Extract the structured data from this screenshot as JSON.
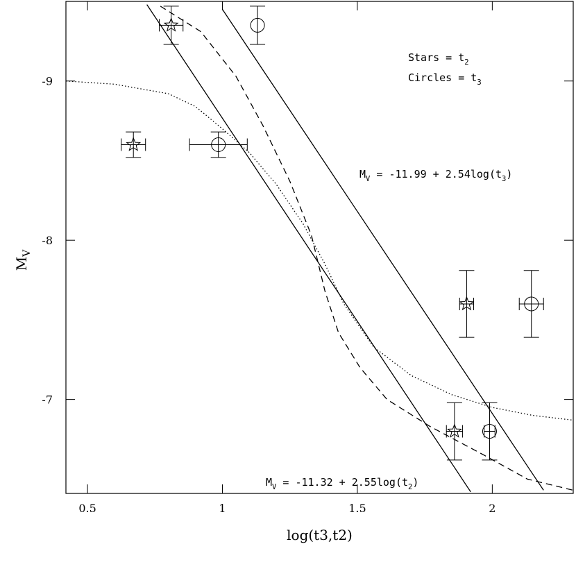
{
  "chart_data": {
    "type": "errorbar",
    "xlabel": "log(t3,t2)",
    "ylabel": [
      {
        "t": "M"
      },
      {
        "sub": "V"
      }
    ],
    "xlim": [
      0.42,
      2.3
    ],
    "ylim": [
      -9.5,
      -6.41
    ],
    "y_inverted": true,
    "xticks": [
      0.5,
      1,
      1.5,
      2
    ],
    "yticks": [
      -9,
      -8,
      -7
    ],
    "points": [
      {
        "marker": "star",
        "x": [
          0.81,
          0.67,
          1.905,
          1.86
        ],
        "y": [
          -9.35,
          -8.6,
          -7.6,
          -6.8
        ],
        "xerr": [
          0.044,
          0.045,
          0.026,
          0.03
        ],
        "yerr": [
          0.12,
          0.08,
          0.21,
          0.18
        ]
      },
      {
        "marker": "circle",
        "x": [
          1.13,
          0.985,
          2.145,
          1.99
        ],
        "y": [
          -9.35,
          -8.6,
          -7.6,
          -6.8
        ],
        "xerr": [
          null,
          0.107,
          0.045,
          0.02
        ],
        "yerr": [
          0.12,
          0.08,
          0.21,
          0.18
        ]
      }
    ],
    "curves": [
      {
        "style": "solid",
        "x": [
          1.0,
          2.19
        ],
        "y": [
          -9.45,
          -6.43
        ]
      },
      {
        "style": "solid",
        "x": [
          0.72,
          1.92
        ],
        "y": [
          -9.48,
          -6.42
        ]
      },
      {
        "style": "dotted",
        "x": [
          0.42,
          0.6,
          0.8,
          0.9,
          1.0,
          1.1,
          1.2,
          1.3,
          1.38,
          1.45,
          1.56,
          1.7,
          1.85,
          2.0,
          2.15,
          2.3
        ],
        "y": [
          -9.0,
          -8.98,
          -8.92,
          -8.84,
          -8.7,
          -8.55,
          -8.35,
          -8.1,
          -7.85,
          -7.6,
          -7.33,
          -7.15,
          -7.03,
          -6.95,
          -6.9,
          -6.87
        ]
      },
      {
        "style": "dashed",
        "x": [
          0.77,
          0.92,
          1.05,
          1.15,
          1.25,
          1.33,
          1.38,
          1.43,
          1.51,
          1.61,
          1.77,
          1.97,
          2.13,
          2.3
        ],
        "y": [
          -9.47,
          -9.31,
          -9.03,
          -8.72,
          -8.37,
          -8.03,
          -7.68,
          -7.42,
          -7.2,
          -7.0,
          -6.83,
          -6.65,
          -6.5,
          -6.43
        ]
      }
    ],
    "annotations": [
      {
        "parts": [
          {
            "t": "Stars  = t"
          },
          {
            "sub": "2"
          }
        ]
      },
      {
        "parts": [
          {
            "t": "Circles = t"
          },
          {
            "sub": "3"
          }
        ]
      },
      {
        "parts": [
          {
            "t": "M"
          },
          {
            "sub": "V"
          },
          {
            "t": " = -11.99 + 2.54log(t"
          },
          {
            "sub": "3"
          },
          {
            "t": ")"
          }
        ]
      },
      {
        "parts": [
          {
            "t": "M"
          },
          {
            "sub": "V"
          },
          {
            "t": " = -11.32 + 2.55log(t"
          },
          {
            "sub": "2"
          },
          {
            "t": ")"
          }
        ]
      }
    ]
  }
}
